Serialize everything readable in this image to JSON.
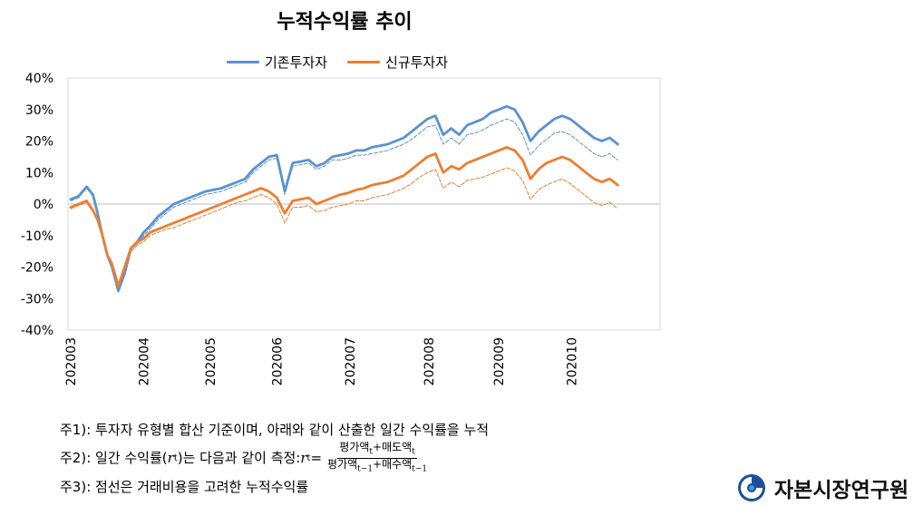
{
  "chart_data": {
    "type": "line",
    "title": "누적수익률 추이",
    "x_ticks": [
      "202003",
      "202004",
      "202005",
      "202006",
      "202007",
      "202008",
      "202009",
      "202010"
    ],
    "y_ticks": [
      "40%",
      "30%",
      "20%",
      "10%",
      "0%",
      "-10%",
      "-20%",
      "-30%",
      "-40%"
    ],
    "ylim": [
      -40,
      40
    ],
    "ylabel": "",
    "xlabel": "",
    "legend": [
      "기존투자자",
      "신규투자자"
    ],
    "colors": {
      "existing": "#5b92cf",
      "new": "#ed7d31"
    },
    "x_index": [
      0,
      5,
      10,
      14,
      17,
      20,
      23,
      26,
      30,
      34,
      38,
      42,
      46,
      50,
      55,
      60,
      65,
      70,
      75,
      80,
      85,
      90,
      95,
      100,
      105,
      110,
      115,
      120,
      125,
      130,
      135,
      140,
      145,
      150,
      155,
      160,
      165,
      170,
      175,
      180,
      185,
      190,
      195,
      200,
      205,
      210,
      215,
      220,
      225,
      230,
      235,
      240,
      245,
      250,
      255,
      260,
      265,
      270,
      275,
      280,
      285,
      290,
      295,
      300,
      305,
      310,
      315,
      320,
      325,
      330,
      335,
      340,
      345,
      350,
      355,
      360,
      365,
      370
    ],
    "series": [
      {
        "name": "기존투자자",
        "style": "solid",
        "color": "#5b92cf",
        "values": [
          1.5,
          2.5,
          5.5,
          3,
          -3,
          -10,
          -16,
          -20,
          -27.5,
          -22,
          -14,
          -12,
          -9,
          -7,
          -4,
          -2,
          0,
          1,
          2,
          3,
          4,
          4.5,
          5,
          6,
          7,
          8,
          11,
          13,
          15,
          15.5,
          4,
          13,
          13.5,
          14,
          12,
          13,
          15,
          15.5,
          16,
          17,
          17,
          18,
          18.5,
          19,
          20,
          21,
          23,
          25,
          27,
          28,
          22,
          24,
          22,
          25,
          26,
          27,
          29,
          30,
          31,
          30,
          26,
          20,
          23,
          25,
          27,
          28,
          27,
          25,
          23,
          21,
          20,
          21,
          19
        ]
      },
      {
        "name": "기존투자자(비용)",
        "style": "dashed",
        "color": "#5b92cf",
        "values": [
          1,
          2,
          5,
          2.5,
          -3.5,
          -10.5,
          -16.5,
          -20.5,
          -28,
          -22.5,
          -15,
          -13,
          -10,
          -8,
          -5,
          -3,
          -1,
          0,
          1,
          2,
          3,
          3.5,
          4,
          5,
          6,
          7,
          10,
          12,
          14,
          14.5,
          3,
          12,
          12.5,
          13,
          11,
          12,
          14,
          14,
          14.5,
          15.5,
          15.5,
          16,
          16.5,
          17,
          18,
          19,
          20.5,
          22.5,
          24.5,
          25,
          19,
          21,
          19,
          22,
          22.5,
          23.5,
          25,
          26,
          27,
          26,
          22,
          15.5,
          18.5,
          20.5,
          22.5,
          23,
          22,
          20,
          18,
          16,
          15,
          16,
          14
        ]
      },
      {
        "name": "신규투자자",
        "style": "solid",
        "color": "#ed7d31",
        "values": [
          -1,
          0,
          1,
          -2,
          -5,
          -10,
          -16,
          -19,
          -26,
          -20,
          -14,
          -12,
          -11,
          -9,
          -8,
          -7,
          -6,
          -5,
          -4,
          -3,
          -2,
          -1,
          0,
          1,
          2,
          3,
          4,
          5,
          4,
          2,
          -3,
          1,
          1.5,
          2,
          0,
          1,
          2,
          3,
          3.5,
          4.5,
          5,
          6,
          6.5,
          7,
          8,
          9,
          11,
          13,
          15,
          16,
          10,
          12,
          11,
          13,
          14,
          15,
          16,
          17,
          18,
          17,
          14,
          8,
          11,
          13,
          14,
          15,
          14,
          12,
          10,
          8,
          7,
          8,
          6
        ]
      },
      {
        "name": "신규투자자(비용)",
        "style": "dashed",
        "color": "#ed7d31",
        "values": [
          -1.5,
          -0.5,
          0.5,
          -2.5,
          -5.5,
          -10.5,
          -16.5,
          -19.5,
          -26.5,
          -20.5,
          -15,
          -13,
          -12,
          -10,
          -9,
          -8,
          -7.5,
          -6.5,
          -5.5,
          -4.5,
          -3.5,
          -2.5,
          -1.5,
          -0.5,
          0.5,
          1,
          2,
          3,
          2,
          0,
          -6,
          -1,
          -1,
          -0.5,
          -2.5,
          -2,
          -1,
          -0.5,
          0,
          1,
          1,
          2,
          2.5,
          3,
          4,
          5,
          6.5,
          8.5,
          10,
          11,
          5,
          7,
          5.5,
          7.5,
          8,
          8.5,
          9.5,
          10.5,
          11.5,
          10.5,
          7.5,
          1.5,
          4.5,
          6,
          7,
          8,
          6.5,
          4.5,
          2.5,
          0.5,
          -0.5,
          0.5,
          -1.5
        ]
      }
    ]
  },
  "notes": {
    "note1": "주1): 투자자 유형별 합산 기준이며, 아래와 같이 산출한 일간 수익률을 누적",
    "note2_prefix": "주2): 일간 수익률(",
    "note2_var": "r",
    "note2_sub": "t",
    "note2_mid": ")는 다음과 같이 측정: ",
    "note2_lhs": "r",
    "note2_eq": " =",
    "frac_num": "평가액",
    "frac_num_sub": "t",
    "frac_num_plus": "+매도액",
    "frac_num_sub2": "t",
    "frac_den": "평가액",
    "frac_den_sub": "t−1",
    "frac_den_plus": "+매수액",
    "frac_den_sub2": "t−1",
    "note3": "주3): 점선은 거래비용을 고려한 누적수익률"
  },
  "logo": {
    "text": "자본시장연구원"
  }
}
